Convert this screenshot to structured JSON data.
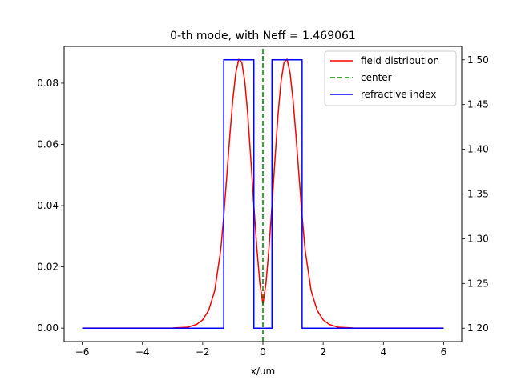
{
  "chart_data": {
    "type": "line",
    "title": "0-th mode, with Neff = 1.469061",
    "xlabel": "x/um",
    "ylabel": "",
    "xlim": [
      -6.6,
      6.6
    ],
    "ylim_left": [
      -0.0044,
      0.092
    ],
    "ylim_right": [
      1.185,
      1.515
    ],
    "xticks": [
      "-6",
      "-4",
      "-2",
      "0",
      "2",
      "4",
      "6"
    ],
    "yticks_left": [
      "0.00",
      "0.02",
      "0.04",
      "0.06",
      "0.08"
    ],
    "yticks_right": [
      "1.20",
      "1.25",
      "1.30",
      "1.35",
      "1.40",
      "1.45",
      "1.50"
    ],
    "grid": false,
    "legend_position": "top-right",
    "series": [
      {
        "name": "field distribution",
        "axis": "left",
        "color": "#ff0000",
        "x": [
          -6.0,
          -3.0,
          -2.5,
          -2.2,
          -2.0,
          -1.8,
          -1.6,
          -1.4,
          -1.3,
          -1.2,
          -1.1,
          -1.0,
          -0.9,
          -0.8,
          -0.7,
          -0.6,
          -0.5,
          -0.4,
          -0.3,
          -0.2,
          -0.1,
          0.0,
          0.1,
          0.2,
          0.3,
          0.4,
          0.5,
          0.6,
          0.7,
          0.8,
          0.9,
          1.0,
          1.1,
          1.2,
          1.3,
          1.4,
          1.6,
          1.8,
          2.0,
          2.2,
          2.5,
          3.0,
          6.0
        ],
        "y": [
          0.0,
          3e-05,
          0.0003,
          0.0012,
          0.0027,
          0.0058,
          0.0122,
          0.0255,
          0.0365,
          0.0495,
          0.0625,
          0.0745,
          0.0834,
          0.0878,
          0.0868,
          0.0805,
          0.0695,
          0.055,
          0.04,
          0.026,
          0.0145,
          0.0078,
          0.0145,
          0.026,
          0.04,
          0.055,
          0.0695,
          0.0805,
          0.0868,
          0.0878,
          0.0834,
          0.0745,
          0.0625,
          0.0495,
          0.0365,
          0.0255,
          0.0122,
          0.0058,
          0.0027,
          0.0012,
          0.0003,
          3e-05,
          0.0
        ]
      },
      {
        "name": "center",
        "axis": "left",
        "color": "#008000",
        "style": "dashed",
        "x": [
          0,
          0
        ],
        "y": [
          -0.0044,
          0.092
        ]
      },
      {
        "name": "refractive index",
        "axis": "right",
        "color": "#0000ff",
        "x": [
          -6.0,
          -1.3,
          -1.3,
          -0.3,
          -0.3,
          0.3,
          0.3,
          1.3,
          1.3,
          6.0
        ],
        "y": [
          1.2,
          1.2,
          1.5,
          1.5,
          1.2,
          1.2,
          1.5,
          1.5,
          1.2,
          1.2
        ]
      }
    ]
  }
}
